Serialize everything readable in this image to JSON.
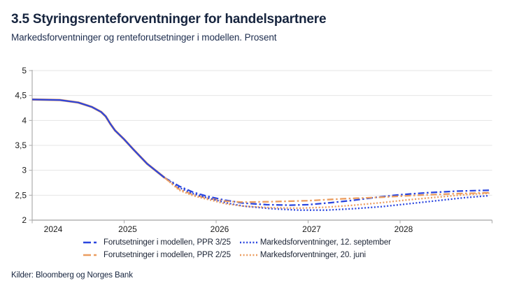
{
  "header": {
    "title": "3.5 Styringsrenteforventninger for handelspartnere",
    "subtitle": "Markedsforventninger og renteforutsetninger i modellen. Prosent"
  },
  "source": "Kilder: Bloomberg og Norges Bank",
  "colors": {
    "blue_line": "#2b46df",
    "orange_line": "#eb9d60",
    "grid": "#e4e4e4",
    "axis": "#b3b3b3",
    "tick": "#a8a8a8",
    "tick_label": "#1a1a1a",
    "title_text": "#16243e"
  },
  "chart_data": {
    "type": "line",
    "title": "3.5 Styringsrenteforventninger for handelspartnere",
    "subtitle": "Markedsforventninger og renteforutsetninger i modellen. Prosent",
    "xlabel": "",
    "ylabel": "Prosent",
    "x_range": [
      2024,
      2029
    ],
    "x_ticks": [
      2024,
      2025,
      2026,
      2027,
      2028
    ],
    "ylim": [
      2,
      5
    ],
    "y_ticks": [
      {
        "v": 5,
        "label": "5"
      },
      {
        "v": 4.5,
        "label": "4,5"
      },
      {
        "v": 4,
        "label": "4"
      },
      {
        "v": 3.5,
        "label": "3,5"
      },
      {
        "v": 3,
        "label": "3"
      },
      {
        "v": 2.5,
        "label": "2,5"
      },
      {
        "v": 2,
        "label": "2"
      }
    ],
    "grid": true,
    "legend_position": "bottom",
    "history": {
      "points": [
        [
          2024.0,
          4.42
        ],
        [
          2024.3,
          4.41
        ],
        [
          2024.5,
          4.36
        ],
        [
          2024.65,
          4.27
        ],
        [
          2024.75,
          4.17
        ],
        [
          2024.8,
          4.08
        ],
        [
          2024.85,
          3.93
        ],
        [
          2024.9,
          3.8
        ],
        [
          2025.0,
          3.62
        ],
        [
          2025.1,
          3.42
        ],
        [
          2025.25,
          3.13
        ],
        [
          2025.44,
          2.85
        ]
      ]
    },
    "series": [
      {
        "name": "Forutsetninger i modellen, PPR 3/25",
        "color": "#2b46df",
        "style": "dashed",
        "points": [
          [
            2025.44,
            2.85
          ],
          [
            2025.6,
            2.68
          ],
          [
            2025.75,
            2.56
          ],
          [
            2025.9,
            2.48
          ],
          [
            2026.1,
            2.4
          ],
          [
            2026.3,
            2.34
          ],
          [
            2026.55,
            2.31
          ],
          [
            2026.8,
            2.3
          ],
          [
            2027.0,
            2.31
          ],
          [
            2027.25,
            2.35
          ],
          [
            2027.5,
            2.4
          ],
          [
            2027.75,
            2.46
          ],
          [
            2028.0,
            2.51
          ],
          [
            2028.3,
            2.55
          ],
          [
            2028.6,
            2.58
          ],
          [
            2028.97,
            2.6
          ]
        ]
      },
      {
        "name": "Forutsetninger i modellen, PPR 2/25",
        "color": "#eb9d60",
        "style": "dashed",
        "points": [
          [
            2025.44,
            2.85
          ],
          [
            2025.6,
            2.62
          ],
          [
            2025.75,
            2.51
          ],
          [
            2025.9,
            2.44
          ],
          [
            2026.1,
            2.38
          ],
          [
            2026.3,
            2.36
          ],
          [
            2026.6,
            2.37
          ],
          [
            2027.0,
            2.39
          ],
          [
            2027.4,
            2.43
          ],
          [
            2027.8,
            2.46
          ],
          [
            2028.2,
            2.5
          ],
          [
            2028.6,
            2.53
          ],
          [
            2028.97,
            2.55
          ]
        ]
      },
      {
        "name": "Markedsforventninger, 12. september",
        "color": "#2b46df",
        "style": "dotted",
        "points": [
          [
            2025.44,
            2.85
          ],
          [
            2025.6,
            2.65
          ],
          [
            2025.75,
            2.53
          ],
          [
            2025.9,
            2.45
          ],
          [
            2026.1,
            2.35
          ],
          [
            2026.3,
            2.28
          ],
          [
            2026.6,
            2.23
          ],
          [
            2026.9,
            2.2
          ],
          [
            2027.2,
            2.2
          ],
          [
            2027.5,
            2.23
          ],
          [
            2027.8,
            2.27
          ],
          [
            2028.1,
            2.33
          ],
          [
            2028.4,
            2.39
          ],
          [
            2028.7,
            2.45
          ],
          [
            2028.97,
            2.49
          ]
        ]
      },
      {
        "name": "Markedsforventninger, 20. juni",
        "color": "#eb9d60",
        "style": "dotted",
        "points": [
          [
            2025.44,
            2.85
          ],
          [
            2025.6,
            2.6
          ],
          [
            2025.75,
            2.49
          ],
          [
            2025.9,
            2.42
          ],
          [
            2026.1,
            2.33
          ],
          [
            2026.3,
            2.28
          ],
          [
            2026.6,
            2.25
          ],
          [
            2026.9,
            2.24
          ],
          [
            2027.2,
            2.26
          ],
          [
            2027.5,
            2.3
          ],
          [
            2027.8,
            2.35
          ],
          [
            2028.1,
            2.41
          ],
          [
            2028.4,
            2.46
          ],
          [
            2028.7,
            2.51
          ],
          [
            2028.97,
            2.54
          ]
        ]
      }
    ]
  },
  "legend_order": [
    0,
    2,
    1,
    3
  ]
}
